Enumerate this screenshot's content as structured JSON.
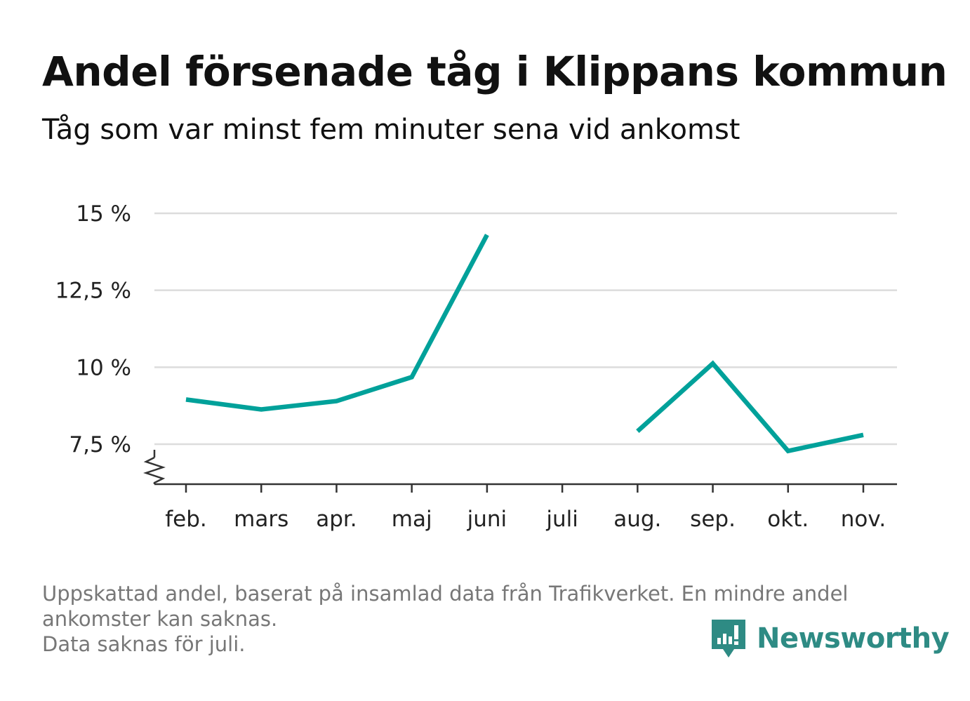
{
  "title": "Andel försenade tåg i Klippans kommun",
  "subtitle": "Tåg som var minst fem minuter sena vid ankomst",
  "footnote": {
    "line1": "Uppskattad andel, baserat på insamlad data från Trafikverket. En mindre andel",
    "line2": "ankomster kan saknas.",
    "line3": "Data saknas för juli."
  },
  "brand": {
    "name": "Newsworthy",
    "icon": "newsworthy-logo-icon",
    "color": "#2e8b84"
  },
  "chart_data": {
    "type": "line",
    "title": "Andel försenade tåg i Klippans kommun",
    "subtitle": "Tåg som var minst fem minuter sena vid ankomst",
    "categories": [
      "feb.",
      "mars",
      "apr.",
      "maj",
      "juni",
      "juli",
      "aug.",
      "sep.",
      "okt.",
      "nov."
    ],
    "series": [
      {
        "values": [
          8.95,
          8.63,
          8.9,
          9.68,
          14.3,
          null,
          7.92,
          10.12,
          7.28,
          7.8
        ],
        "color": "#00a19a"
      }
    ],
    "y_ticks": [
      7.5,
      10,
      12.5,
      15
    ],
    "y_tick_labels": [
      "7,5 %",
      "10 %",
      "12,5 %",
      "15 %"
    ],
    "ylim": [
      6.2,
      15
    ],
    "axis_break": true,
    "grid": true,
    "legend": "none"
  }
}
